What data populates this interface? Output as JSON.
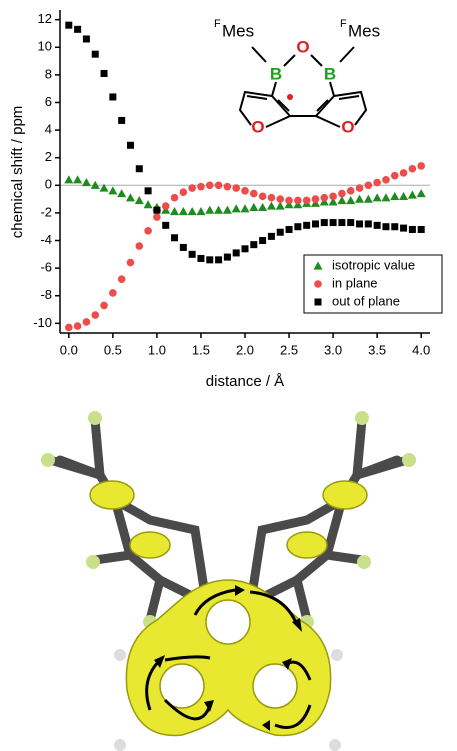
{
  "chart_data": {
    "type": "scatter",
    "x_label": "distance / Å",
    "y_label": "chemical shift / ppm",
    "x": [
      0,
      0.1,
      0.2,
      0.3,
      0.4,
      0.5,
      0.6,
      0.7,
      0.8,
      0.9,
      1.0,
      1.1,
      1.2,
      1.3,
      1.4,
      1.5,
      1.6,
      1.7,
      1.8,
      1.9,
      2.0,
      2.1,
      2.2,
      2.3,
      2.4,
      2.5,
      2.6,
      2.7,
      2.8,
      2.9,
      3.0,
      3.1,
      3.2,
      3.3,
      3.4,
      3.5,
      3.6,
      3.7,
      3.8,
      3.9,
      4.0
    ],
    "series": [
      {
        "name": "isotropic value",
        "color": "#1e8c1e",
        "marker": "triangle",
        "values": [
          0.4,
          0.4,
          0.2,
          0.0,
          -0.2,
          -0.4,
          -0.6,
          -0.9,
          -1.1,
          -1.4,
          -1.6,
          -1.8,
          -1.9,
          -1.9,
          -1.9,
          -1.9,
          -1.8,
          -1.8,
          -1.8,
          -1.7,
          -1.7,
          -1.6,
          -1.6,
          -1.5,
          -1.5,
          -1.4,
          -1.4,
          -1.3,
          -1.3,
          -1.2,
          -1.2,
          -1.1,
          -1.1,
          -1.0,
          -1.0,
          -0.9,
          -0.9,
          -0.8,
          -0.8,
          -0.7,
          -0.6
        ]
      },
      {
        "name": "in plane",
        "color": "#ee4b4b",
        "marker": "circle",
        "values": [
          -10.3,
          -10.2,
          -9.9,
          -9.4,
          -8.7,
          -7.8,
          -6.8,
          -5.6,
          -4.4,
          -3.3,
          -2.3,
          -1.5,
          -0.9,
          -0.5,
          -0.2,
          -0.1,
          0.0,
          0.0,
          -0.1,
          -0.2,
          -0.4,
          -0.6,
          -0.8,
          -0.9,
          -1.0,
          -1.1,
          -1.1,
          -1.1,
          -1.0,
          -0.9,
          -0.8,
          -0.6,
          -0.4,
          -0.2,
          0.0,
          0.2,
          0.4,
          0.7,
          0.9,
          1.2,
          1.4
        ]
      },
      {
        "name": "out of plane",
        "color": "#000000",
        "marker": "square",
        "values": [
          11.6,
          11.3,
          10.6,
          9.5,
          8.1,
          6.4,
          4.7,
          2.9,
          1.2,
          -0.4,
          -1.8,
          -2.9,
          -3.8,
          -4.5,
          -5.0,
          -5.3,
          -5.4,
          -5.4,
          -5.2,
          -4.9,
          -4.6,
          -4.3,
          -4.0,
          -3.7,
          -3.4,
          -3.2,
          -3.0,
          -2.9,
          -2.8,
          -2.7,
          -2.7,
          -2.7,
          -2.7,
          -2.8,
          -2.8,
          -2.9,
          -3.0,
          -3.0,
          -3.1,
          -3.2,
          -3.2
        ]
      }
    ],
    "xlim": [
      -0.1,
      4.1
    ],
    "ylim": [
      -10.7,
      12.7
    ],
    "xticks": [
      {
        "value": 0,
        "label": "0.0"
      },
      {
        "value": 0.5,
        "label": "0.5"
      },
      {
        "value": 1,
        "label": "1.0"
      },
      {
        "value": 1.5,
        "label": "1.5"
      },
      {
        "value": 2,
        "label": "2.0"
      },
      {
        "value": 2.5,
        "label": "2.5"
      },
      {
        "value": 3,
        "label": "3.0"
      },
      {
        "value": 3.5,
        "label": "3.5"
      },
      {
        "value": 4,
        "label": "4.0"
      }
    ],
    "yticks": [
      -10,
      -8,
      -6,
      -4,
      -2,
      0,
      2,
      4,
      6,
      8,
      10,
      12
    ],
    "zero_line": true,
    "legend_position": "lower right",
    "structure_labels": {
      "left_sup": "F",
      "left_group": "Mes",
      "right_sup": "F",
      "right_group": "Mes",
      "boron_left": "B",
      "boron_right": "B",
      "oxygen_center": "O",
      "oxygen_left": "O",
      "oxygen_right": "O"
    }
  }
}
